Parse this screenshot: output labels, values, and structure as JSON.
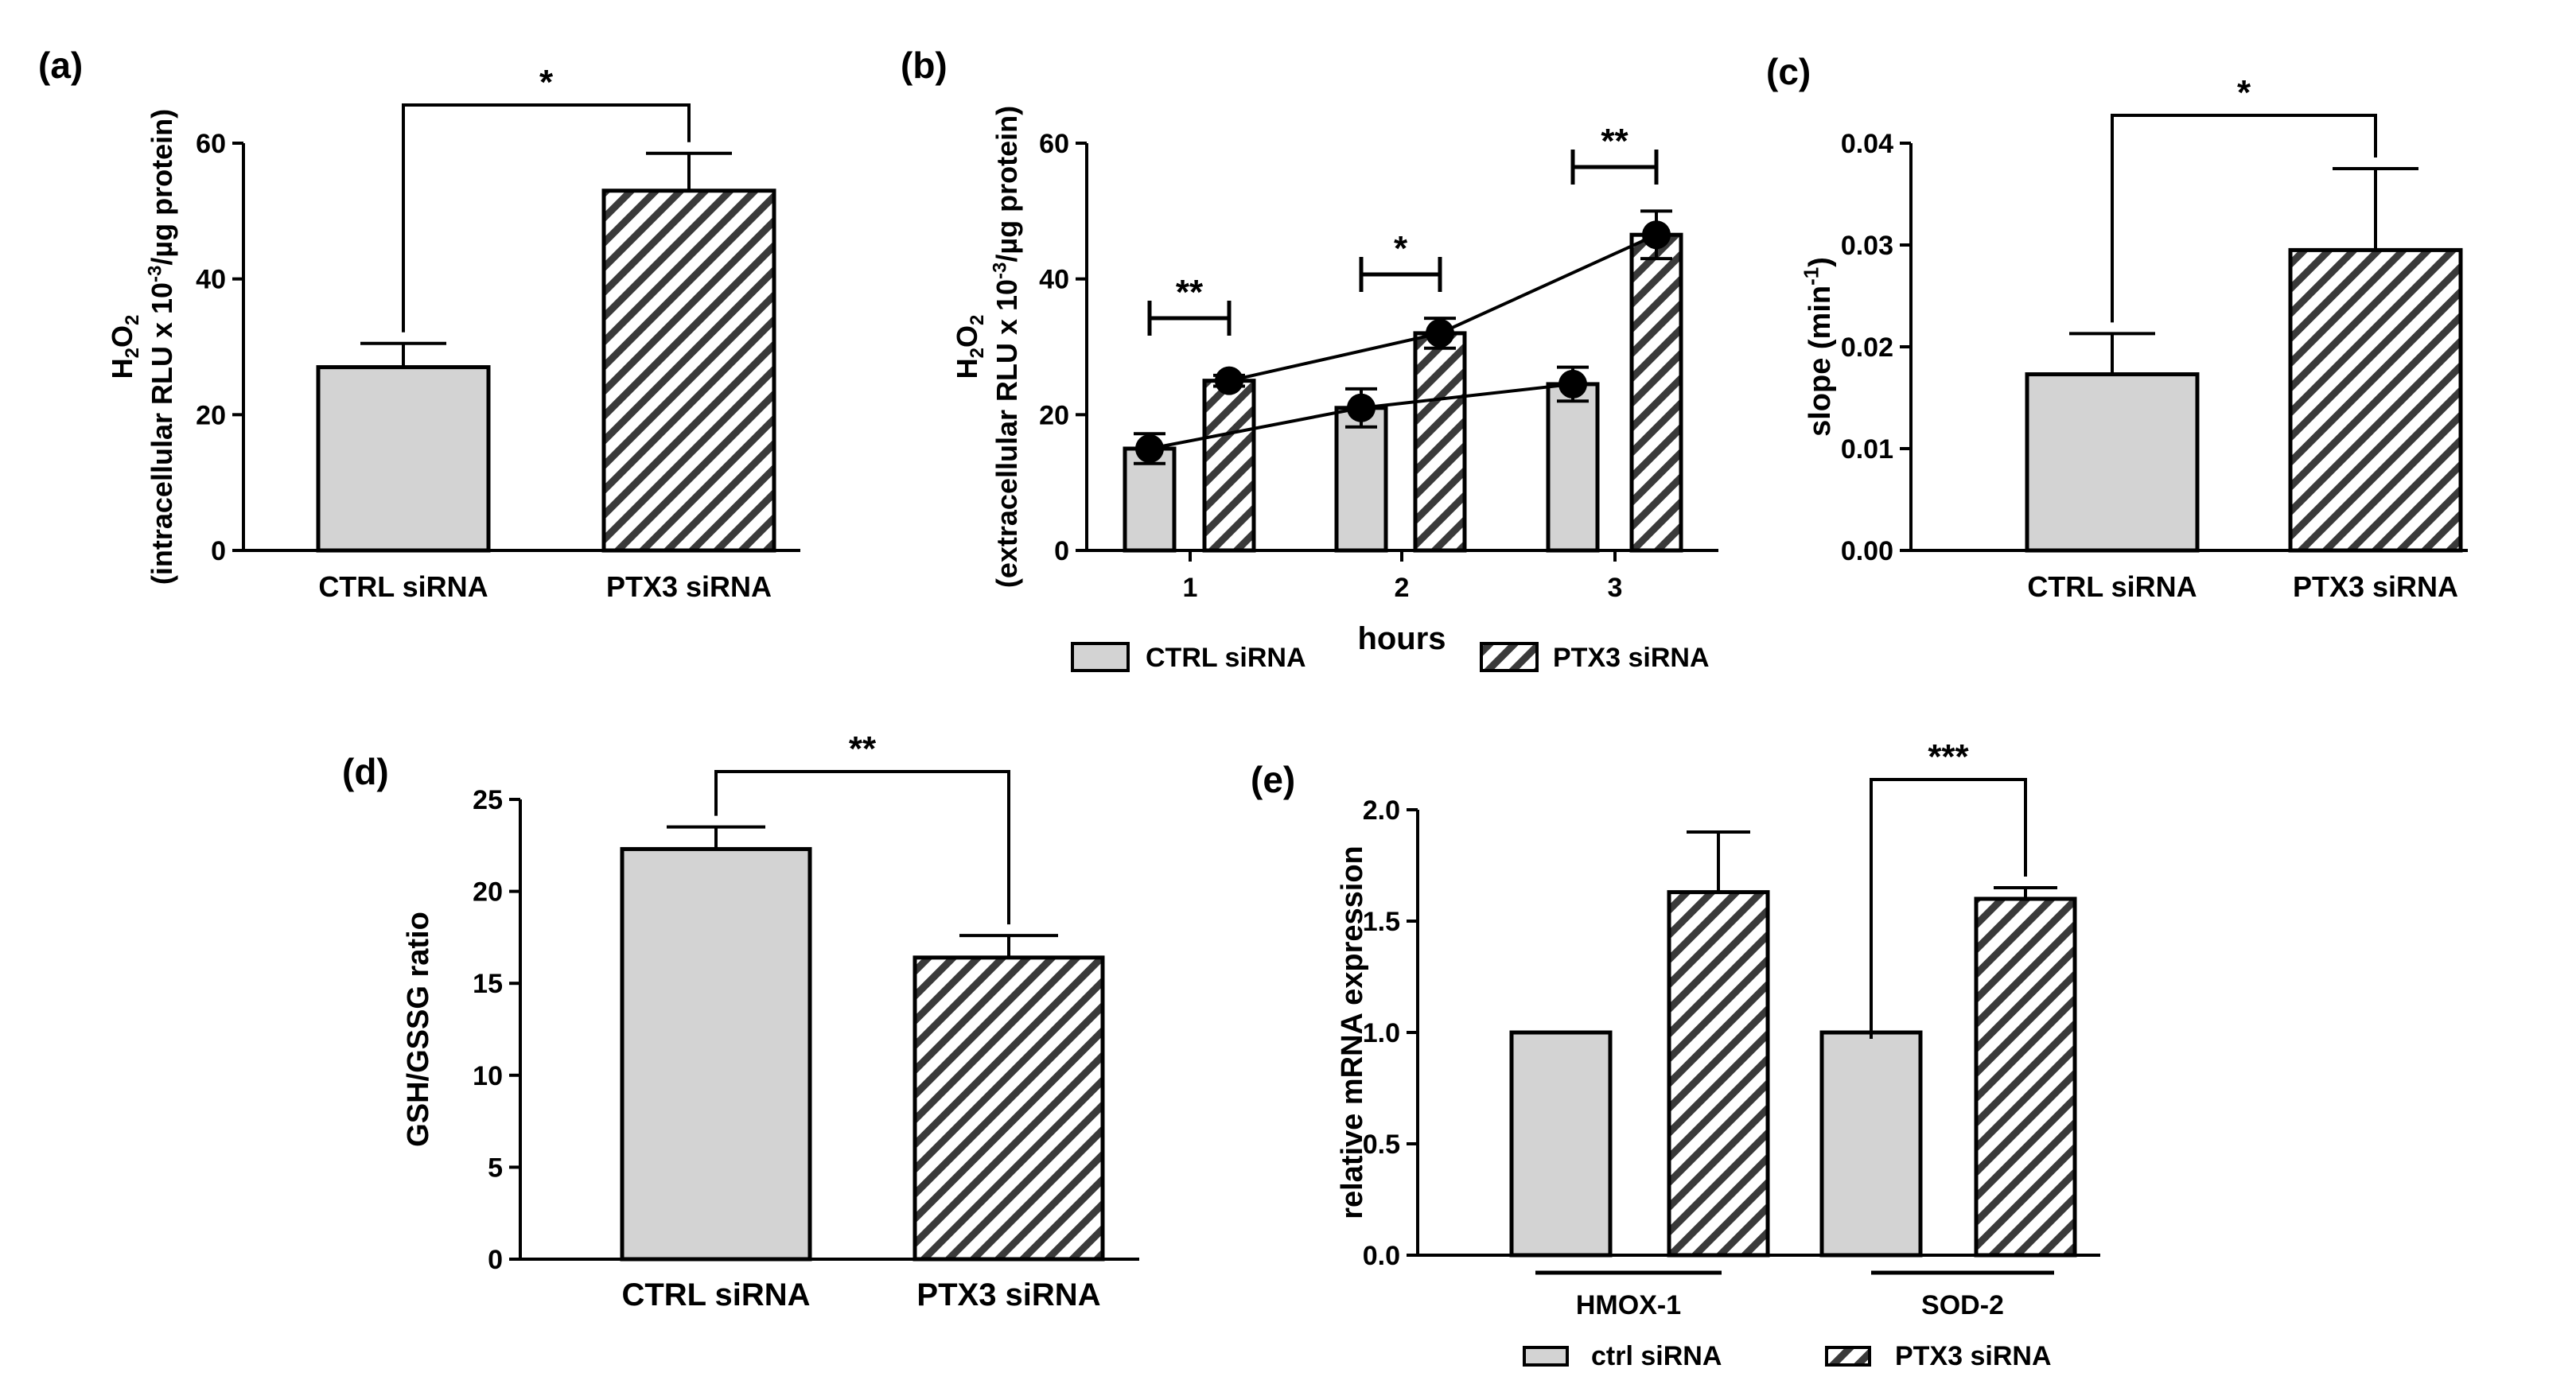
{
  "chart_data": [
    {
      "panel": "(a)",
      "type": "bar",
      "categories": [
        "CTRL siRNA",
        "PTX3 siRNA"
      ],
      "values": [
        27,
        53
      ],
      "errors": [
        3.5,
        5.5
      ],
      "ylabel_top": "H2O2",
      "ylabel": "(intracellular RLU x 10-3/µg protein)",
      "ylim": [
        0,
        60
      ],
      "yticks": [
        0,
        20,
        40,
        60
      ],
      "yticklabels": [
        "0",
        "20",
        "40",
        "60"
      ],
      "significance": [
        {
          "pair": [
            0,
            1
          ],
          "label": "*"
        }
      ],
      "colors": {
        "ctrl": "#d3d3d3",
        "ptx3_hatch": "#3a3a3a"
      }
    },
    {
      "panel": "(b)",
      "type": "bar",
      "categories": [
        "1",
        "2",
        "3"
      ],
      "series": [
        {
          "name": "CTRL siRNA",
          "values": [
            15,
            21,
            24.5
          ],
          "errors": [
            2.2,
            2.8,
            2.5
          ]
        },
        {
          "name": "PTX3 siRNA",
          "values": [
            25,
            32,
            46.5
          ],
          "errors": [
            0.8,
            2.2,
            3.5
          ]
        }
      ],
      "xlabel": "hours",
      "ylabel_top": "H2O2",
      "ylabel": "(extracellular RLU x 10-3/µg protein)",
      "ylim": [
        0,
        60
      ],
      "yticks": [
        0,
        20,
        40,
        60
      ],
      "yticklabels": [
        "0",
        "20",
        "40",
        "60"
      ],
      "significance": [
        {
          "category": 0,
          "label": "**"
        },
        {
          "category": 1,
          "label": "*"
        },
        {
          "category": 2,
          "label": "**"
        }
      ],
      "legend": [
        "CTRL siRNA",
        "PTX3 siRNA"
      ],
      "legend_position": "bottom"
    },
    {
      "panel": "(c)",
      "type": "bar",
      "categories": [
        "CTRL siRNA",
        "PTX3 siRNA"
      ],
      "values": [
        0.0173,
        0.0295
      ],
      "errors": [
        0.004,
        0.008
      ],
      "ylabel": "slope (min-1)",
      "ylim": [
        0,
        0.04
      ],
      "yticks": [
        0,
        0.01,
        0.02,
        0.03,
        0.04
      ],
      "yticklabels": [
        "0.00",
        "0.01",
        "0.02",
        "0.03",
        "0.04"
      ],
      "significance": [
        {
          "pair": [
            0,
            1
          ],
          "label": "*"
        }
      ]
    },
    {
      "panel": "(d)",
      "type": "bar",
      "categories": [
        "CTRL siRNA",
        "PTX3 siRNA"
      ],
      "values": [
        22.3,
        16.4
      ],
      "errors": [
        1.2,
        1.2
      ],
      "ylabel": "GSH/GSSG ratio",
      "ylim": [
        0,
        25
      ],
      "yticks": [
        0,
        5,
        10,
        15,
        20,
        25
      ],
      "yticklabels": [
        "0",
        "5",
        "10",
        "15",
        "20",
        "25"
      ],
      "significance": [
        {
          "pair": [
            0,
            1
          ],
          "label": "**"
        }
      ]
    },
    {
      "panel": "(e)",
      "type": "bar",
      "categories": [
        "HMOX-1",
        "SOD-2"
      ],
      "series": [
        {
          "name": "ctrl siRNA",
          "values": [
            1.0,
            1.0
          ],
          "errors": [
            0,
            0
          ]
        },
        {
          "name": "PTX3 siRNA",
          "values": [
            1.63,
            1.6
          ],
          "errors": [
            0.27,
            0.05
          ]
        }
      ],
      "ylabel": "relative mRNA expression",
      "ylim": [
        0,
        2.0
      ],
      "yticks": [
        0,
        0.5,
        1.0,
        1.5,
        2.0
      ],
      "yticklabels": [
        "0.0",
        "0.5",
        "1.0",
        "1.5",
        "2.0"
      ],
      "significance": [
        {
          "category": 1,
          "label": "***"
        }
      ],
      "legend": [
        "ctrl siRNA",
        "PTX3 siRNA"
      ],
      "legend_position": "bottom"
    }
  ]
}
